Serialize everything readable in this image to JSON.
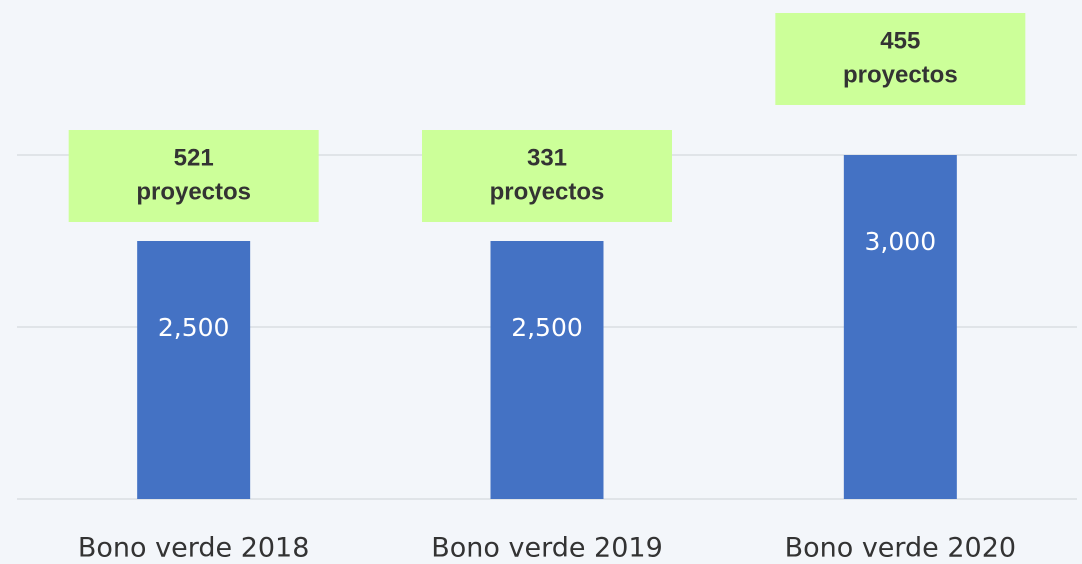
{
  "chart_data": {
    "type": "bar",
    "categories": [
      "Bono verde 2018",
      "Bono verde 2019",
      "Bono verde 2020"
    ],
    "values": [
      2500,
      2500,
      3000
    ],
    "value_labels": [
      "2,500",
      "2,500",
      "3,000"
    ],
    "annotations": [
      [
        "521",
        "proyectos"
      ],
      [
        "331",
        "proyectos"
      ],
      [
        "455",
        "proyectos"
      ]
    ],
    "color": "#4472c4",
    "annotation_color": "#ccff99",
    "ylim": [
      1000,
      3000
    ],
    "yticks": [
      1000,
      2000,
      3000
    ],
    "grid": true
  }
}
